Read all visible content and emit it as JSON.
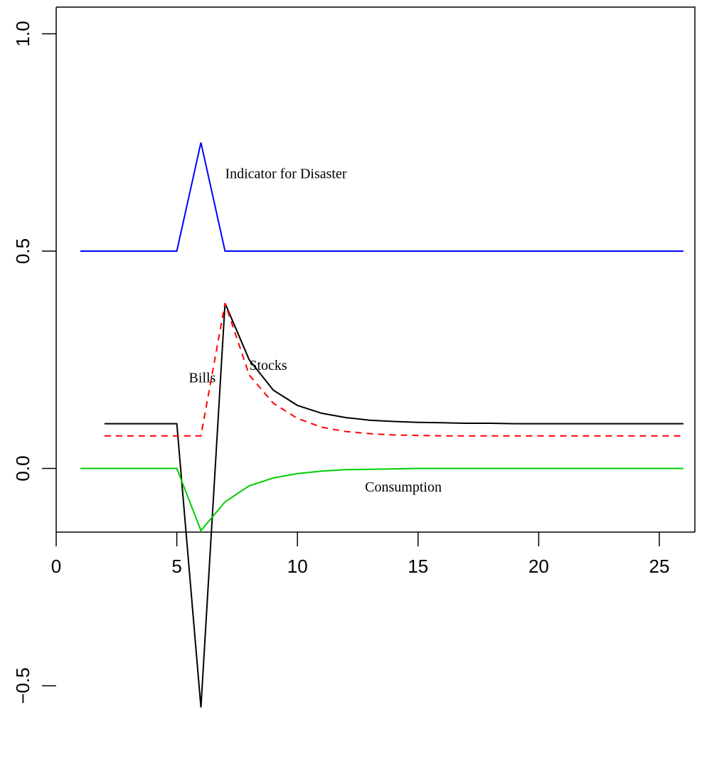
{
  "chart_data": {
    "type": "line",
    "title": "",
    "xlabel": "",
    "ylabel": "",
    "xlim": [
      0,
      26
    ],
    "ylim": [
      -0.55,
      1.05
    ],
    "x_ticks": [
      0,
      5,
      10,
      15,
      20,
      25
    ],
    "x_tick_labels": [
      "0",
      "5",
      "10",
      "15",
      "20",
      "25"
    ],
    "y_ticks": [
      -0.5,
      0.0,
      0.5,
      1.0
    ],
    "y_tick_labels": [
      "−0.5",
      "0.0",
      "0.5",
      "1.0"
    ],
    "grid": false,
    "legend": "none",
    "series": [
      {
        "name": "Indicator for Disaster",
        "color": "#0000ff",
        "dash": "solid",
        "x": [
          1,
          2,
          3,
          4,
          5,
          6,
          7,
          8,
          9,
          10,
          11,
          12,
          13,
          14,
          15,
          16,
          17,
          18,
          19,
          20,
          21,
          22,
          23,
          24,
          25,
          26
        ],
        "values": [
          0.5,
          0.5,
          0.5,
          0.5,
          0.5,
          0.75,
          0.5,
          0.5,
          0.5,
          0.5,
          0.5,
          0.5,
          0.5,
          0.5,
          0.5,
          0.5,
          0.5,
          0.5,
          0.5,
          0.5,
          0.5,
          0.5,
          0.5,
          0.5,
          0.5,
          0.5
        ]
      },
      {
        "name": "Stocks",
        "color": "#000000",
        "dash": "solid",
        "x": [
          2,
          3,
          4,
          5,
          6,
          7,
          8,
          9,
          10,
          11,
          12,
          13,
          14,
          15,
          16,
          17,
          18,
          19,
          20,
          21,
          22,
          23,
          24,
          25,
          26
        ],
        "values": [
          0.103,
          0.103,
          0.103,
          0.103,
          -0.55,
          0.38,
          0.25,
          0.18,
          0.145,
          0.127,
          0.117,
          0.111,
          0.108,
          0.106,
          0.105,
          0.104,
          0.104,
          0.103,
          0.103,
          0.103,
          0.103,
          0.103,
          0.103,
          0.103,
          0.103
        ]
      },
      {
        "name": "Bills",
        "color": "#ff0000",
        "dash": "dashed",
        "x": [
          2,
          3,
          4,
          5,
          6,
          7,
          8,
          9,
          10,
          11,
          12,
          13,
          14,
          15,
          16,
          17,
          18,
          19,
          20,
          21,
          22,
          23,
          24,
          25,
          26
        ],
        "values": [
          0.075,
          0.075,
          0.075,
          0.075,
          0.075,
          0.38,
          0.215,
          0.15,
          0.115,
          0.095,
          0.085,
          0.08,
          0.077,
          0.076,
          0.075,
          0.075,
          0.075,
          0.075,
          0.075,
          0.075,
          0.075,
          0.075,
          0.075,
          0.075,
          0.075
        ]
      },
      {
        "name": "Consumption",
        "color": "#00cd00",
        "dash": "solid",
        "x": [
          1,
          2,
          3,
          4,
          5,
          6,
          7,
          8,
          9,
          10,
          11,
          12,
          13,
          14,
          15,
          16,
          17,
          18,
          19,
          20,
          21,
          22,
          23,
          24,
          25,
          26
        ],
        "values": [
          0,
          0,
          0,
          0,
          0,
          -0.143,
          -0.077,
          -0.04,
          -0.022,
          -0.012,
          -0.006,
          -0.003,
          -0.002,
          -0.001,
          0,
          0,
          0,
          0,
          0,
          0,
          0,
          0,
          0,
          0,
          0,
          0
        ]
      }
    ],
    "annotations": [
      {
        "text": "Indicator for Disaster",
        "x": 7.0,
        "y": 0.668
      },
      {
        "text": "Stocks",
        "x": 8.0,
        "y": 0.227
      },
      {
        "text": "Bills",
        "x": 5.5,
        "y": 0.198
      },
      {
        "text": "Consumption",
        "x": 12.8,
        "y": -0.053
      }
    ]
  }
}
